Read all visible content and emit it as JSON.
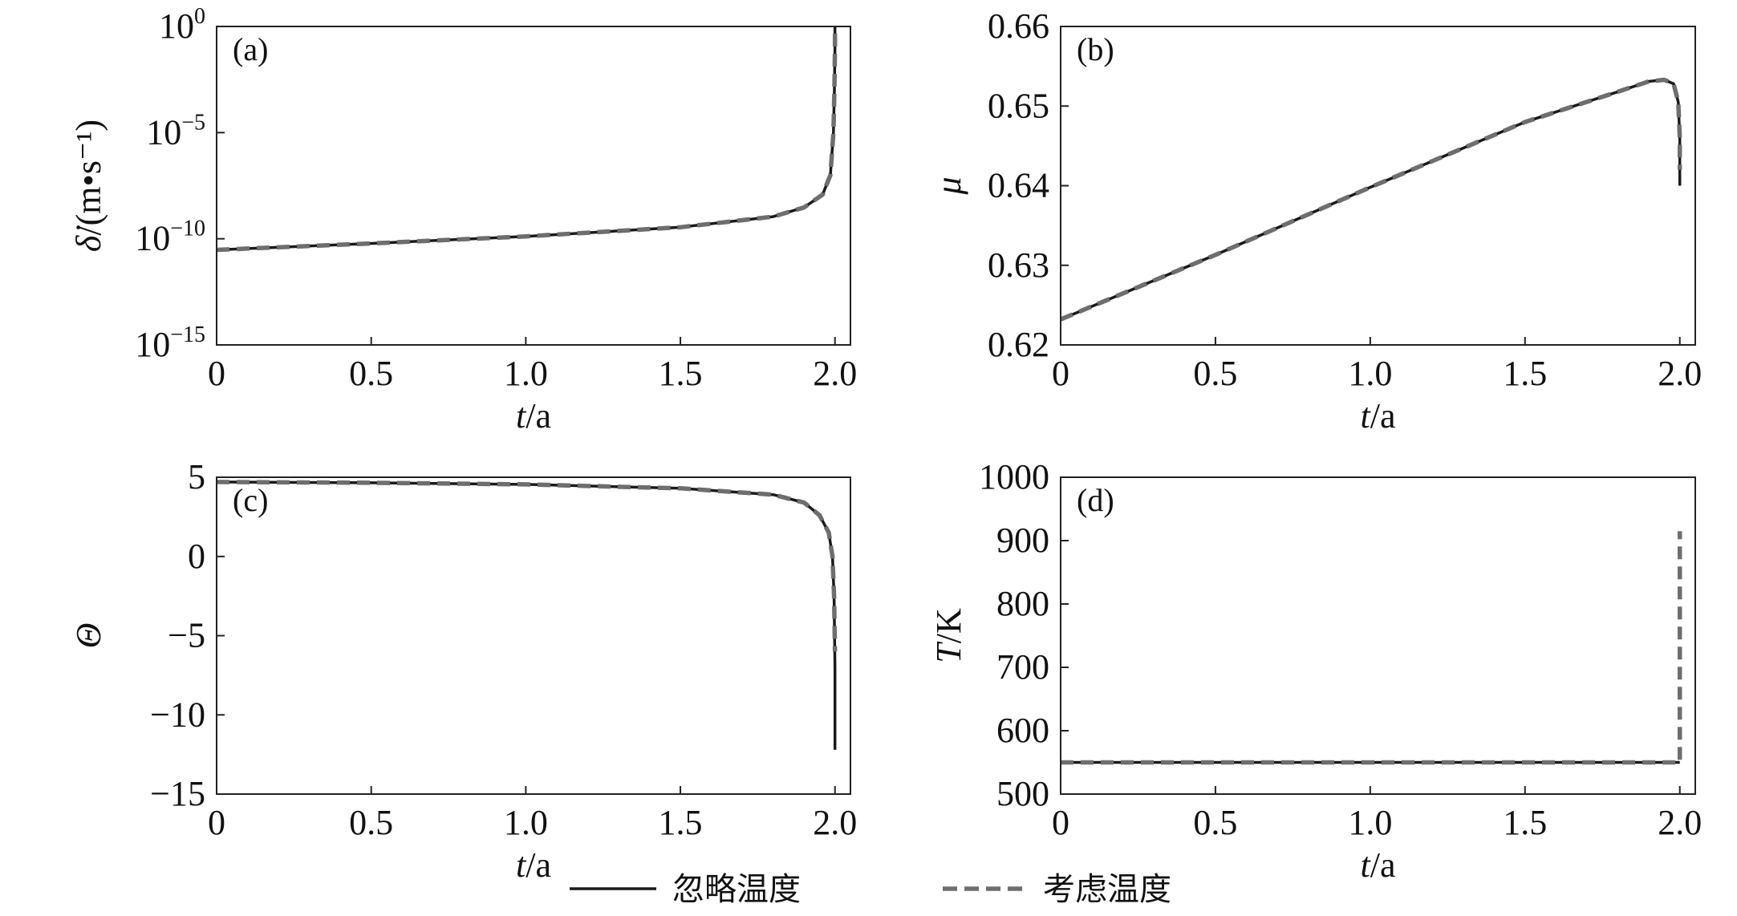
{
  "legend": {
    "items": [
      {
        "label": "忽略温度",
        "style": "solid",
        "color": "#1a1a1a"
      },
      {
        "label": "考虑温度",
        "style": "dashed",
        "color": "#6e6e6e"
      }
    ]
  },
  "chart_data": [
    {
      "panel": "(a)",
      "type": "line",
      "xlabel_italic": "t",
      "xlabel_rest": "/a",
      "xlim": [
        0,
        2.05
      ],
      "xticks": [
        "0",
        "0.5",
        "1.0",
        "1.5",
        "2.0"
      ],
      "xtick_values": [
        0,
        0.5,
        1.0,
        1.5,
        2.0
      ],
      "ylabel_italic": "δ̇",
      "ylabel_rest": "/(m•s⁻¹)",
      "yscale": "log",
      "ylim": [
        1e-15,
        1
      ],
      "yticks": [
        {
          "base": "10",
          "exp": "0",
          "value": 1
        },
        {
          "base": "10",
          "exp": "−5",
          "value": 1e-05
        },
        {
          "base": "10",
          "exp": "−10",
          "value": 1e-10
        },
        {
          "base": "10",
          "exp": "−15",
          "value": 1e-15
        }
      ],
      "series": [
        {
          "name": "忽略温度",
          "x": [
            0,
            0.5,
            1.0,
            1.5,
            1.8,
            1.9,
            1.96,
            1.985,
            1.995,
            1.998,
            2.0,
            2.0
          ],
          "y": [
            3e-11,
            6e-11,
            1.3e-10,
            3.5e-10,
            1.1e-09,
            3e-09,
            1.2e-08,
            1e-07,
            1e-05,
            0.001,
            0.1,
            1
          ]
        },
        {
          "name": "考虑温度",
          "x": [
            0,
            0.5,
            1.0,
            1.5,
            1.8,
            1.9,
            1.96,
            1.985,
            1.995,
            1.998,
            2.0,
            2.0
          ],
          "y": [
            3e-11,
            6e-11,
            1.3e-10,
            3.5e-10,
            1.1e-09,
            3e-09,
            1.2e-08,
            1e-07,
            1e-05,
            0.001,
            0.1,
            1
          ]
        }
      ]
    },
    {
      "panel": "(b)",
      "type": "line",
      "xlabel_italic": "t",
      "xlabel_rest": "/a",
      "xlim": [
        0,
        2.05
      ],
      "xticks": [
        "0",
        "0.5",
        "1.0",
        "1.5",
        "2.0"
      ],
      "xtick_values": [
        0,
        0.5,
        1.0,
        1.5,
        2.0
      ],
      "ylabel_italic": "μ",
      "ylabel_rest": "",
      "yscale": "linear",
      "ylim": [
        0.62,
        0.66
      ],
      "yticks": [
        {
          "label": "0.66",
          "value": 0.66
        },
        {
          "label": "0.65",
          "value": 0.65
        },
        {
          "label": "0.64",
          "value": 0.64
        },
        {
          "label": "0.63",
          "value": 0.63
        },
        {
          "label": "0.62",
          "value": 0.62
        }
      ],
      "series": [
        {
          "name": "忽略温度",
          "x": [
            0,
            0.5,
            1.0,
            1.5,
            1.8,
            1.9,
            1.95,
            1.98,
            1.995,
            2.0,
            2.0
          ],
          "y": [
            0.6232,
            0.6313,
            0.6398,
            0.648,
            0.6518,
            0.6531,
            0.6533,
            0.6528,
            0.6505,
            0.646,
            0.64
          ]
        },
        {
          "name": "考虑温度",
          "x": [
            0,
            0.5,
            1.0,
            1.5,
            1.8,
            1.9,
            1.95,
            1.98,
            1.995,
            2.0,
            2.0
          ],
          "y": [
            0.6232,
            0.6313,
            0.6398,
            0.648,
            0.6518,
            0.6531,
            0.6533,
            0.6528,
            0.6505,
            0.646,
            0.642
          ]
        }
      ]
    },
    {
      "panel": "(c)",
      "type": "line",
      "xlabel_italic": "t",
      "xlabel_rest": "/a",
      "xlim": [
        0,
        2.05
      ],
      "xticks": [
        "0",
        "0.5",
        "1.0",
        "1.5",
        "2.0"
      ],
      "xtick_values": [
        0,
        0.5,
        1.0,
        1.5,
        2.0
      ],
      "ylabel_italic": "Θ",
      "ylabel_rest": "",
      "yscale": "linear",
      "ylim": [
        -15,
        5
      ],
      "yticks": [
        {
          "label": "5",
          "value": 5
        },
        {
          "label": "0",
          "value": 0
        },
        {
          "label": "−5",
          "value": -5
        },
        {
          "label": "−10",
          "value": -10
        },
        {
          "label": "−15",
          "value": -15
        }
      ],
      "series": [
        {
          "name": "忽略温度",
          "x": [
            0,
            0.5,
            1.0,
            1.5,
            1.8,
            1.9,
            1.95,
            1.98,
            1.992,
            1.997,
            2.0,
            2.0
          ],
          "y": [
            4.7,
            4.65,
            4.55,
            4.3,
            3.9,
            3.4,
            2.6,
            1.5,
            0,
            -2.5,
            -7,
            -12.2
          ]
        },
        {
          "name": "考虑温度",
          "x": [
            0,
            0.5,
            1.0,
            1.5,
            1.8,
            1.9,
            1.95,
            1.98,
            1.992,
            1.997,
            2.0
          ],
          "y": [
            4.7,
            4.65,
            4.55,
            4.3,
            3.9,
            3.4,
            2.6,
            1.5,
            0,
            -2.5,
            -6
          ]
        }
      ]
    },
    {
      "panel": "(d)",
      "type": "line",
      "xlabel_italic": "t",
      "xlabel_rest": "/a",
      "xlim": [
        0,
        2.05
      ],
      "xticks": [
        "0",
        "0.5",
        "1.0",
        "1.5",
        "2.0"
      ],
      "xtick_values": [
        0,
        0.5,
        1.0,
        1.5,
        2.0
      ],
      "ylabel_italic": "T",
      "ylabel_rest": "/K",
      "yscale": "linear",
      "ylim": [
        500,
        1000
      ],
      "yticks": [
        {
          "label": "1000",
          "value": 1000
        },
        {
          "label": "900",
          "value": 900
        },
        {
          "label": "800",
          "value": 800
        },
        {
          "label": "700",
          "value": 700
        },
        {
          "label": "600",
          "value": 600
        },
        {
          "label": "500",
          "value": 500
        }
      ],
      "series": [
        {
          "name": "忽略温度",
          "x": [
            0,
            2.0
          ],
          "y": [
            550,
            550
          ]
        },
        {
          "name": "考虑温度",
          "x": [
            0,
            2.0,
            2.0
          ],
          "y": [
            550,
            550,
            915
          ]
        }
      ]
    }
  ]
}
